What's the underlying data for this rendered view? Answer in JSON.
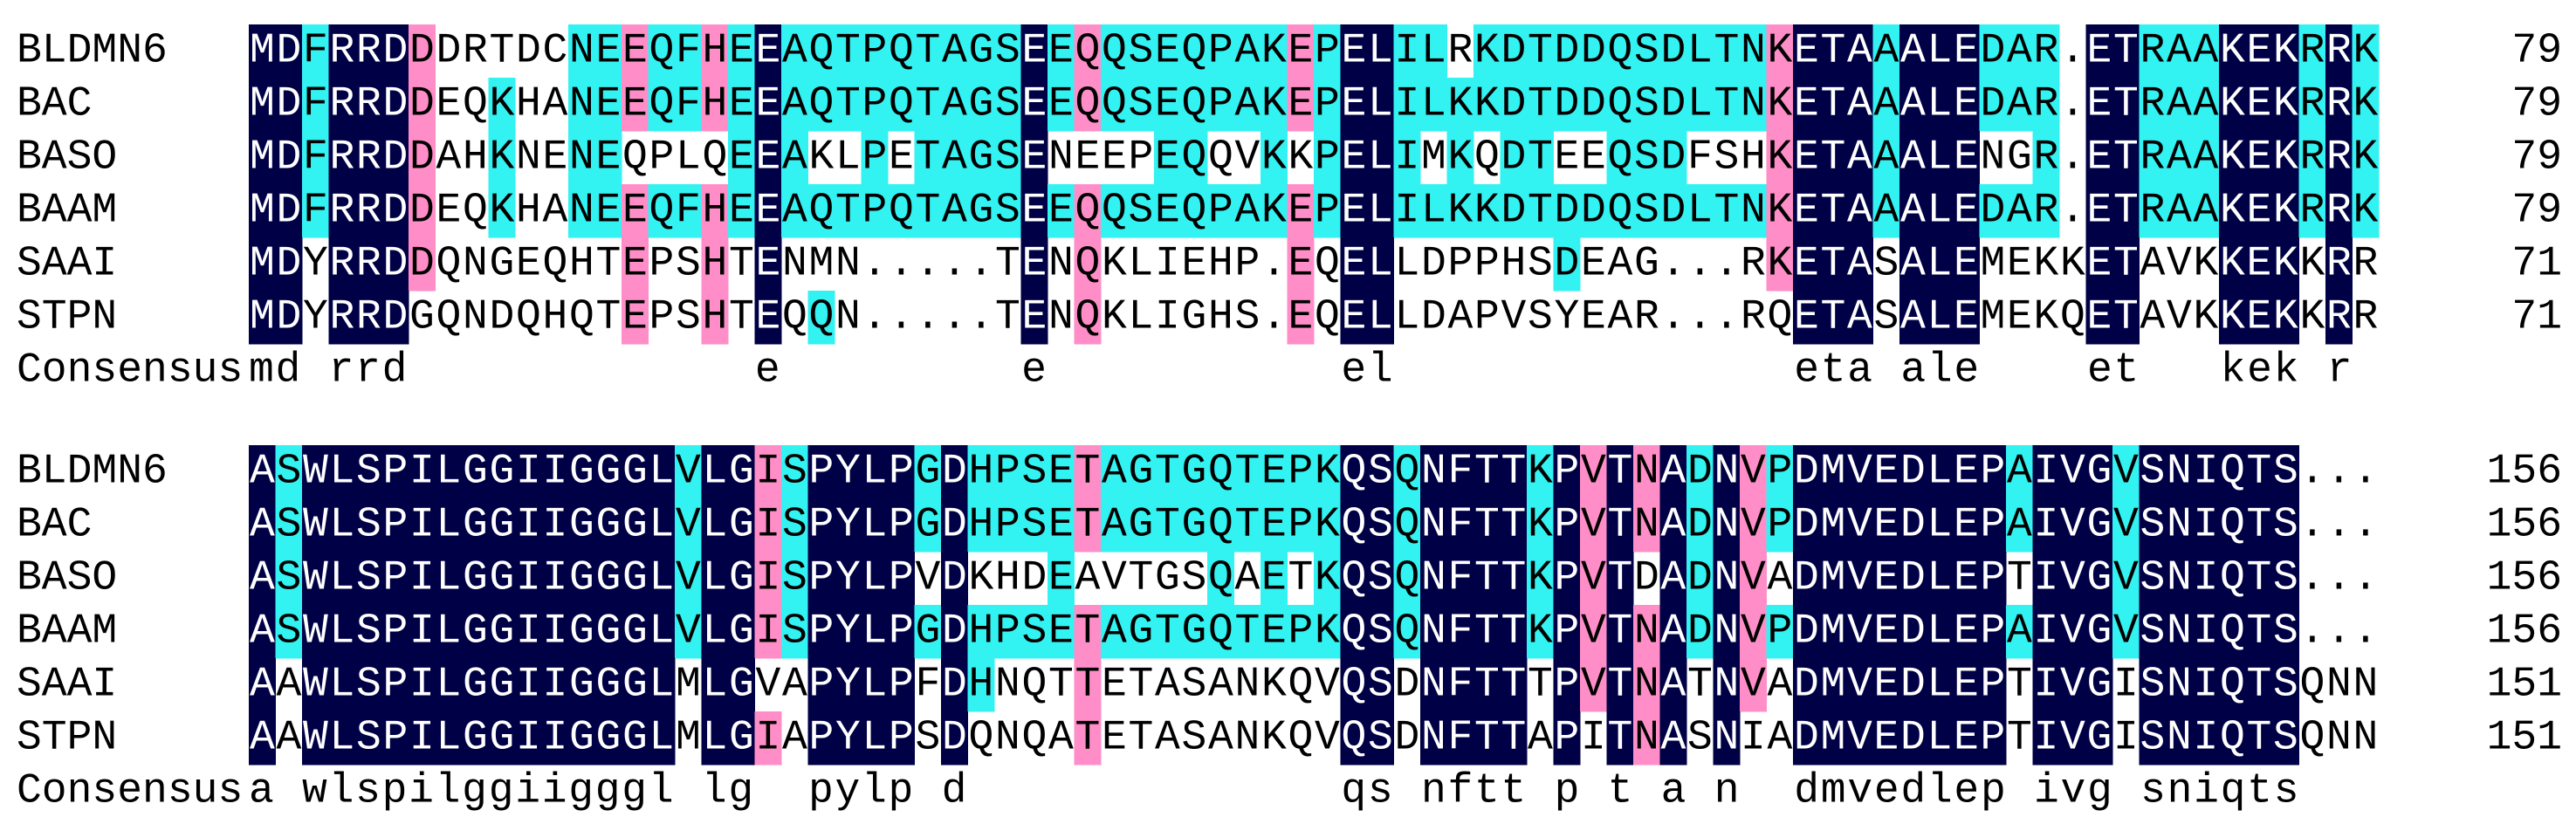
{
  "blocks": [
    {
      "rows": [
        {
          "name": "BLDMN6",
          "sequence": "MDFRRDDDRTDCNEEQFHEEAQTPQTAGSEEQQSEQPAKEPELILRKDTDDQSDLTNKETAAALEDAR.ETRAAKEKRRK",
          "end": 79
        },
        {
          "name": "BAC",
          "sequence": "MDFRRDDEQKHANEEQFHEEAQTPQTAGSEEQQSEQPAKEPELILKKDTDDQSDLTNKETAAALEDAR.ETRAAKEKRRK",
          "end": 79
        },
        {
          "name": "BASO",
          "sequence": "MDFRRDDAHKNENEQPLQEEAKLPETAGSENEEPEQQVKKPELIMKQDTEEQSDFSHKETAAALENGR.ETRAAKEKRRK",
          "end": 79
        },
        {
          "name": "BAAM",
          "sequence": "MDFRRDDEQKHANEEQFHEEAQTPQTAGSEEQQSEQPAKEPELILKKDTDDQSDLTNKETAAALEDAR.ETRAAKEKRRK",
          "end": 79
        },
        {
          "name": "SAAI",
          "sequence": "MDYRRDDQNGEQHTEPSHTENMN.....TENQKLIEHP.EQELLDPPHSDEAG...RKETASALEMEKKETAVKKEKKRR",
          "end": 71
        },
        {
          "name": "STPN",
          "sequence": "MDYRRDGQNDQHQTEPSHTEQQN.....TENQKLIGHS.EQELLDAPVSYEAR...RQETASALEMEKQETAVKKEKKRR",
          "end": 71
        }
      ],
      "consensus": {
        "label": "Consensus",
        "sequence": "md rrd             e         e           el               eta ale    et   kek r"
      }
    },
    {
      "rows": [
        {
          "name": "BLDMN6",
          "sequence": "ASWLSPILGGIIGGGLVLGISPYLPGDHPSETAGTGQTEPKQSQNFTTKPVTNADNVPDMVEDLEPAIVGVSNIQTS...",
          "end": 156
        },
        {
          "name": "BAC",
          "sequence": "ASWLSPILGGIIGGGLVLGISPYLPGDHPSETAGTGQTEPKQSQNFTTKPVTNADNVPDMVEDLEPAIVGVSNIQTS...",
          "end": 156
        },
        {
          "name": "BASO",
          "sequence": "ASWLSPILGGIIGGGLVLGISPYLPVDKHDEAVTGSQAETKQSQNFTTKPVTDADNVADMVEDLEPTIVGVSNIQTS...",
          "end": 156
        },
        {
          "name": "BAAM",
          "sequence": "ASWLSPILGGIIGGGLVLGISPYLPGDHPSETAGTGQTEPKQSQNFTTKPVTNADNVPDMVEDLEPAIVGVSNIQTS...",
          "end": 156
        },
        {
          "name": "SAAI",
          "sequence": "AAWLSPILGGIIGGGLMLGVAPYLPFDHNQTTETASANKQVQSDNFTTTPVTNATNVADMVEDLEPTIVGISNIQTSQNN",
          "end": 151
        },
        {
          "name": "STPN",
          "sequence": "AAWLSPILGGIIGGGLMLGIAPYLPSDQNQATETASANKQVQSDNFTTAPITNASNIADMVEDLEPTIVGISNIQTSQNN",
          "end": 151
        }
      ],
      "consensus": {
        "label": "Consensus",
        "sequence": "a wlspilggiigggl lg  pylp d              qs nftt p t a n  dmvedlep ivg sniqts"
      }
    }
  ]
}
